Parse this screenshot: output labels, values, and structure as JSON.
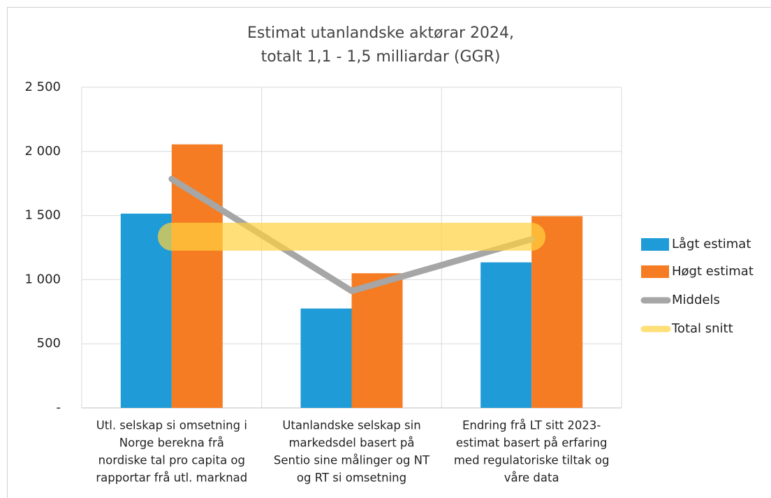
{
  "chart_data": {
    "type": "bar",
    "title": [
      "Estimat utanlandske aktørar 2024,",
      "totalt 1,1 - 1,5 milliardar (GGR)"
    ],
    "categories": [
      [
        "Utl. selskap si omsetning i",
        "Norge berekna frå",
        "nordiske tal pro capita og",
        "rapportar frå utl. marknad"
      ],
      [
        "Utanlandske selskap sin",
        "markedsdel basert på",
        "Sentio sine målinger og NT",
        "og RT si omsetning"
      ],
      [
        "Endring frå LT sitt 2023-",
        "estimat basert på  erfaring",
        "med regulatoriske tiltak og",
        "våre data"
      ]
    ],
    "series": [
      {
        "name": "Lågt estimat",
        "type": "bar",
        "color": "#1f9bd7",
        "values": [
          1515,
          775,
          1135
        ]
      },
      {
        "name": "Høgt estimat",
        "type": "bar",
        "color": "#f57c22",
        "values": [
          2055,
          1050,
          1495
        ]
      },
      {
        "name": "Middels",
        "type": "line",
        "color": "#a6a6a6",
        "values": [
          1785,
          912,
          1315
        ]
      },
      {
        "name": "Total snitt",
        "type": "line",
        "color": "#ffd23f",
        "values": [
          1335,
          1335,
          1335
        ]
      }
    ],
    "ylim": [
      0,
      2500
    ],
    "yticks": [
      {
        "value": 0,
        "label": "-"
      },
      500,
      {
        "value": 1000,
        "label": "1 000"
      },
      {
        "value": 1500,
        "label": "1 500"
      },
      {
        "value": 2000,
        "label": "2 000"
      },
      {
        "value": 2500,
        "label": "2 500"
      }
    ],
    "grid": true,
    "legend": "right"
  }
}
